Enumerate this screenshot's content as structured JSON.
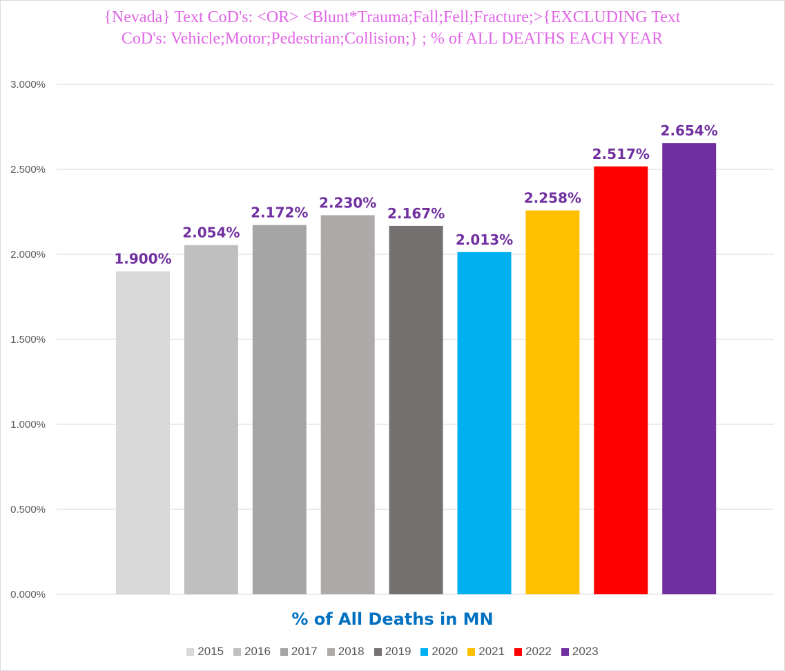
{
  "chart_data": {
    "type": "bar",
    "title": "{Nevada}   Text CoD's: <OR> <Blunt*Trauma;Fall;Fell;Fracture;>{EXCLUDING Text CoD's: Vehicle;Motor;Pedestrian;Collision;} ; % of ALL DEATHS EACH YEAR",
    "xlabel": "% of All Deaths in MN",
    "ylabel": "",
    "categories": [
      "2015",
      "2016",
      "2017",
      "2018",
      "2019",
      "2020",
      "2021",
      "2022",
      "2023"
    ],
    "values": [
      1.9,
      2.054,
      2.172,
      2.23,
      2.167,
      2.013,
      2.258,
      2.517,
      2.654
    ],
    "data_labels": [
      "1.900%",
      "2.054%",
      "2.172%",
      "2.230%",
      "2.167%",
      "2.013%",
      "2.258%",
      "2.517%",
      "2.654%"
    ],
    "colors": [
      "#d9d9d9",
      "#bfbfbf",
      "#a5a5a5",
      "#aeaaaa",
      "#767171",
      "#00b0f0",
      "#ffc000",
      "#ff0000",
      "#7030a0"
    ],
    "ylim": [
      0,
      3.0
    ],
    "yticks": [
      0,
      0.5,
      1.0,
      1.5,
      2.0,
      2.5,
      3.0
    ],
    "ytick_labels": [
      "0.000%",
      "0.500%",
      "1.000%",
      "1.500%",
      "2.000%",
      "2.500%",
      "3.000%"
    ],
    "grid": true,
    "legend_position": "bottom",
    "legend_entries": [
      "2015",
      "2016",
      "2017",
      "2018",
      "2019",
      "2020",
      "2021",
      "2022",
      "2023"
    ]
  }
}
